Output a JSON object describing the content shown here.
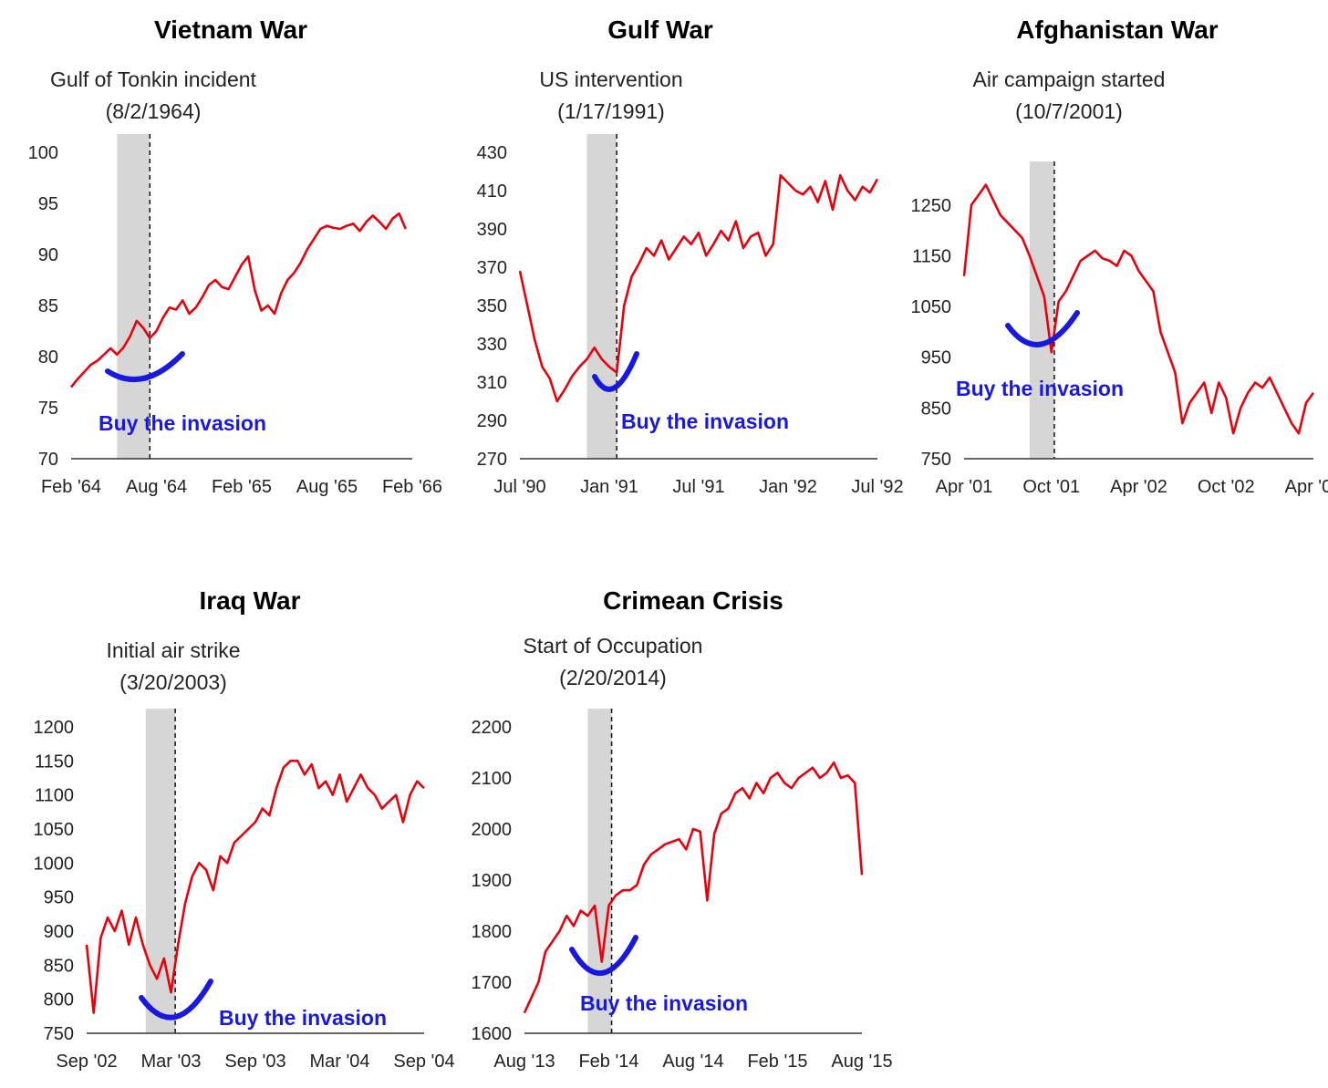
{
  "colors": {
    "line": "#e8000b",
    "shade": "#d6d6d6",
    "annotation": "#1818e0",
    "axis": "#333333"
  },
  "chart_data": [
    {
      "type": "line",
      "title": "Vietnam War",
      "event_label": "Gulf of Tonkin incident",
      "event_date": "(8/2/1964)",
      "annotation": "Buy the invasion",
      "x_ticks": [
        "Feb '64",
        "Aug '64",
        "Feb '65",
        "Aug '65",
        "Feb '66"
      ],
      "y_ticks": [
        "70",
        "75",
        "80",
        "85",
        "90",
        "95",
        "100"
      ],
      "ylim": [
        70,
        100
      ],
      "xlim": [
        0,
        26
      ],
      "event_x": 6,
      "shade_x": [
        3.5,
        6
      ],
      "series": [
        {
          "x": [
            0,
            0.5,
            1,
            1.5,
            2,
            2.5,
            3,
            3.5,
            4,
            4.5,
            5,
            5.5,
            6,
            6.5,
            7,
            7.5,
            8,
            8.5,
            9,
            9.5,
            10,
            10.5,
            11,
            11.5,
            12,
            12.5,
            13,
            13.5,
            14,
            14.5,
            15,
            15.5,
            16,
            16.5,
            17,
            17.5,
            18,
            18.5,
            19,
            19.5,
            20,
            20.5,
            21,
            21.5,
            22,
            22.5,
            23,
            23.5,
            24,
            24.5,
            25,
            25.5
          ],
          "y": [
            77,
            77.8,
            78.5,
            79.2,
            79.6,
            80.2,
            80.8,
            80.2,
            80.9,
            82,
            83.5,
            82.8,
            81.8,
            82.5,
            83.8,
            84.8,
            84.6,
            85.5,
            84.2,
            84.8,
            85.8,
            87,
            87.5,
            86.8,
            86.6,
            87.8,
            89,
            89.8,
            86.5,
            84.5,
            85,
            84.2,
            86.2,
            87.5,
            88.2,
            89.2,
            90.5,
            91.5,
            92.5,
            92.8,
            92.6,
            92.5,
            92.8,
            93,
            92.3,
            93.2,
            93.8,
            93.2,
            92.5,
            93.5,
            94,
            92.5
          ]
        }
      ]
    },
    {
      "type": "line",
      "title": "Gulf War",
      "event_label": "US intervention",
      "event_date": "(1/17/1991)",
      "annotation": "Buy the invasion",
      "x_ticks": [
        "Jul '90",
        "Jan '91",
        "Jul '91",
        "Jan '92",
        "Jul '92"
      ],
      "y_ticks": [
        "270",
        "290",
        "310",
        "330",
        "350",
        "370",
        "390",
        "410",
        "430"
      ],
      "ylim": [
        270,
        430
      ],
      "xlim": [
        0,
        24
      ],
      "event_x": 6.5,
      "shade_x": [
        4.5,
        6.5
      ],
      "series": [
        {
          "x": [
            0,
            0.5,
            1,
            1.5,
            2,
            2.5,
            3,
            3.5,
            4,
            4.5,
            5,
            5.5,
            6,
            6.5,
            7,
            7.5,
            8,
            8.5,
            9,
            9.5,
            10,
            10.5,
            11,
            11.5,
            12,
            12.5,
            13,
            13.5,
            14,
            14.5,
            15,
            15.5,
            16,
            16.5,
            17,
            17.5,
            18,
            18.5,
            19,
            19.5,
            20,
            20.5,
            21,
            21.5,
            22,
            22.5,
            23,
            23.5,
            24
          ],
          "y": [
            368,
            350,
            332,
            318,
            312,
            300,
            306,
            313,
            318,
            322,
            328,
            322,
            318,
            315,
            350,
            365,
            372,
            380,
            376,
            384,
            374,
            380,
            386,
            382,
            388,
            376,
            382,
            389,
            384,
            394,
            380,
            386,
            388,
            376,
            382,
            418,
            414,
            410,
            408,
            412,
            404,
            415,
            400,
            418,
            410,
            405,
            412,
            409,
            416
          ]
        }
      ]
    },
    {
      "type": "line",
      "title": "Afghanistan War",
      "event_label": "Air campaign started",
      "event_date": "(10/7/2001)",
      "annotation": "Buy the invasion",
      "x_ticks": [
        "Apr '01",
        "Oct '01",
        "Apr '02",
        "Oct '02",
        "Apr '03"
      ],
      "y_ticks": [
        "750",
        "850",
        "950",
        "1050",
        "1150",
        "1250"
      ],
      "ylim": [
        750,
        1300
      ],
      "xlim": [
        0,
        24
      ],
      "event_x": 6.2,
      "shade_x": [
        4.5,
        6.2
      ],
      "series": [
        {
          "x": [
            0,
            0.5,
            1,
            1.5,
            2,
            2.5,
            3,
            3.5,
            4,
            4.5,
            5,
            5.5,
            6,
            6.5,
            7,
            7.5,
            8,
            8.5,
            9,
            9.5,
            10,
            10.5,
            11,
            11.5,
            12,
            12.5,
            13,
            13.5,
            14,
            14.5,
            15,
            15.5,
            16,
            16.5,
            17,
            17.5,
            18,
            18.5,
            19,
            19.5,
            20,
            20.5,
            21,
            21.5,
            22,
            22.5,
            23,
            23.5,
            24
          ],
          "y": [
            1110,
            1250,
            1270,
            1290,
            1260,
            1230,
            1215,
            1200,
            1185,
            1150,
            1110,
            1070,
            960,
            1060,
            1080,
            1110,
            1140,
            1150,
            1160,
            1145,
            1140,
            1130,
            1160,
            1150,
            1120,
            1100,
            1080,
            1000,
            960,
            920,
            820,
            860,
            880,
            900,
            840,
            900,
            870,
            800,
            850,
            880,
            900,
            890,
            910,
            880,
            850,
            820,
            800,
            860,
            880
          ]
        }
      ]
    },
    {
      "type": "line",
      "title": "Iraq War",
      "event_label": "Initial air strike",
      "event_date": "(3/20/2003)",
      "annotation": "Buy the invasion",
      "x_ticks": [
        "Sep '02",
        "Mar '03",
        "Sep '03",
        "Mar '04",
        "Sep '04"
      ],
      "y_ticks": [
        "750",
        "800",
        "850",
        "900",
        "950",
        "1000",
        "1050",
        "1100",
        "1150",
        "1200"
      ],
      "ylim": [
        750,
        1200
      ],
      "xlim": [
        0,
        24
      ],
      "event_x": 6.3,
      "shade_x": [
        4.2,
        6.3
      ],
      "series": [
        {
          "x": [
            0,
            0.5,
            1,
            1.5,
            2,
            2.5,
            3,
            3.5,
            4,
            4.5,
            5,
            5.5,
            6,
            6.5,
            7,
            7.5,
            8,
            8.5,
            9,
            9.5,
            10,
            10.5,
            11,
            11.5,
            12,
            12.5,
            13,
            13.5,
            14,
            14.5,
            15,
            15.5,
            16,
            16.5,
            17,
            17.5,
            18,
            18.5,
            19,
            19.5,
            20,
            20.5,
            21,
            21.5,
            22,
            22.5,
            23,
            23.5,
            24
          ],
          "y": [
            880,
            780,
            890,
            920,
            900,
            930,
            880,
            920,
            880,
            850,
            830,
            860,
            810,
            880,
            940,
            980,
            1000,
            990,
            960,
            1010,
            1000,
            1030,
            1040,
            1050,
            1060,
            1080,
            1070,
            1110,
            1140,
            1150,
            1150,
            1130,
            1145,
            1110,
            1120,
            1100,
            1130,
            1090,
            1110,
            1130,
            1110,
            1100,
            1080,
            1090,
            1100,
            1060,
            1100,
            1120,
            1110
          ]
        }
      ]
    },
    {
      "type": "line",
      "title": "Crimean Crisis",
      "event_label": "Start of Occupation",
      "event_date": "(2/20/2014)",
      "annotation": "Buy the invasion",
      "x_ticks": [
        "Aug '13",
        "Feb '14",
        "Aug '14",
        "Feb '15",
        "Aug '15"
      ],
      "y_ticks": [
        "1600",
        "1700",
        "1800",
        "1900",
        "2000",
        "2100",
        "2200"
      ],
      "ylim": [
        1600,
        2200
      ],
      "xlim": [
        0,
        24
      ],
      "event_x": 6.2,
      "shade_x": [
        4.5,
        6.2
      ],
      "series": [
        {
          "x": [
            0,
            0.5,
            1,
            1.5,
            2,
            2.5,
            3,
            3.5,
            4,
            4.5,
            5,
            5.5,
            6,
            6.5,
            7,
            7.5,
            8,
            8.5,
            9,
            9.5,
            10,
            10.5,
            11,
            11.5,
            12,
            12.5,
            13,
            13.5,
            14,
            14.5,
            15,
            15.5,
            16,
            16.5,
            17,
            17.5,
            18,
            18.5,
            19,
            19.5,
            20,
            20.5,
            21,
            21.5,
            22,
            22.5,
            23,
            23.5,
            24
          ],
          "y": [
            1640,
            1670,
            1700,
            1760,
            1780,
            1800,
            1830,
            1810,
            1840,
            1830,
            1850,
            1740,
            1850,
            1870,
            1880,
            1880,
            1890,
            1930,
            1950,
            1960,
            1970,
            1975,
            1980,
            1960,
            2000,
            1995,
            1860,
            1990,
            2030,
            2040,
            2070,
            2080,
            2060,
            2090,
            2070,
            2100,
            2110,
            2090,
            2080,
            2100,
            2110,
            2120,
            2100,
            2110,
            2130,
            2100,
            2105,
            2090,
            1910
          ]
        }
      ]
    }
  ]
}
